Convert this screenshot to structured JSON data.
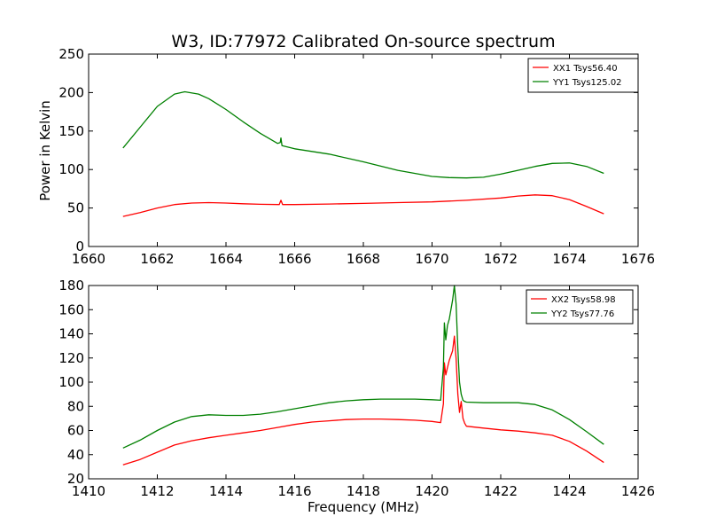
{
  "figure": {
    "title": "W3, ID:77972 Calibrated On-source spectrum",
    "ylabel": "Power in Kelvin",
    "xlabel": "Frequency (MHz)"
  },
  "chart_data": [
    {
      "type": "line",
      "xlim": [
        1660,
        1676
      ],
      "ylim": [
        0,
        250
      ],
      "xticks": [
        "1660",
        "1662",
        "1664",
        "1666",
        "1668",
        "1670",
        "1672",
        "1674",
        "1676"
      ],
      "yticks": [
        "0",
        "50",
        "100",
        "150",
        "200",
        "250"
      ],
      "legend_position": "top-right",
      "series": [
        {
          "name": "XX1 Tsys56.40",
          "color": "#ff0000",
          "points": [
            [
              1661.0,
              39
            ],
            [
              1661.5,
              44
            ],
            [
              1662.0,
              50
            ],
            [
              1662.5,
              54.5
            ],
            [
              1663.0,
              56.5
            ],
            [
              1663.5,
              57
            ],
            [
              1664.0,
              56.5
            ],
            [
              1664.5,
              55.5
            ],
            [
              1665.0,
              54.8
            ],
            [
              1665.55,
              54.5
            ],
            [
              1665.6,
              60
            ],
            [
              1665.65,
              54.5
            ],
            [
              1666.0,
              54.5
            ],
            [
              1667.0,
              55.2
            ],
            [
              1668.0,
              56
            ],
            [
              1669.0,
              57
            ],
            [
              1670.0,
              58
            ],
            [
              1671.0,
              60
            ],
            [
              1672.0,
              63
            ],
            [
              1672.5,
              65.5
            ],
            [
              1673.0,
              67
            ],
            [
              1673.5,
              66
            ],
            [
              1674.0,
              61
            ],
            [
              1674.5,
              52
            ],
            [
              1675.0,
              42.5
            ]
          ]
        },
        {
          "name": "YY1 Tsys125.02",
          "color": "#008000",
          "points": [
            [
              1661.0,
              128
            ],
            [
              1661.5,
              155
            ],
            [
              1662.0,
              182
            ],
            [
              1662.5,
              198
            ],
            [
              1662.8,
              201
            ],
            [
              1663.2,
              198
            ],
            [
              1663.5,
              192
            ],
            [
              1664.0,
              178
            ],
            [
              1664.5,
              162
            ],
            [
              1665.0,
              147
            ],
            [
              1665.5,
              134
            ],
            [
              1665.58,
              135
            ],
            [
              1665.6,
              141
            ],
            [
              1665.63,
              131
            ],
            [
              1666.0,
              127
            ],
            [
              1667.0,
              120
            ],
            [
              1668.0,
              110
            ],
            [
              1669.0,
              99
            ],
            [
              1670.0,
              91
            ],
            [
              1670.5,
              89.5
            ],
            [
              1671.0,
              89
            ],
            [
              1671.5,
              90
            ],
            [
              1672.0,
              94
            ],
            [
              1672.5,
              99
            ],
            [
              1673.0,
              104
            ],
            [
              1673.5,
              108
            ],
            [
              1674.0,
              108.5
            ],
            [
              1674.5,
              104
            ],
            [
              1675.0,
              95
            ]
          ]
        }
      ]
    },
    {
      "type": "line",
      "xlim": [
        1410,
        1426
      ],
      "ylim": [
        20,
        180
      ],
      "xticks": [
        "1410",
        "1412",
        "1414",
        "1416",
        "1418",
        "1420",
        "1422",
        "1424",
        "1426"
      ],
      "yticks": [
        "20",
        "40",
        "60",
        "80",
        "100",
        "120",
        "140",
        "160",
        "180"
      ],
      "legend_position": "top-right",
      "series": [
        {
          "name": "XX2 Tsys58.98",
          "color": "#ff0000",
          "points": [
            [
              1411.0,
              31.5
            ],
            [
              1411.5,
              36
            ],
            [
              1412.0,
              42
            ],
            [
              1412.5,
              48
            ],
            [
              1413.0,
              51.5
            ],
            [
              1413.5,
              54
            ],
            [
              1414.0,
              56
            ],
            [
              1414.5,
              58
            ],
            [
              1415.0,
              60
            ],
            [
              1415.5,
              62.5
            ],
            [
              1416.0,
              65
            ],
            [
              1416.5,
              67
            ],
            [
              1417.0,
              68
            ],
            [
              1417.5,
              69
            ],
            [
              1418.0,
              69.5
            ],
            [
              1418.5,
              69.5
            ],
            [
              1419.0,
              69
            ],
            [
              1419.5,
              68.5
            ],
            [
              1420.0,
              67.5
            ],
            [
              1420.25,
              66.5
            ],
            [
              1420.33,
              82
            ],
            [
              1420.36,
              116
            ],
            [
              1420.4,
              106
            ],
            [
              1420.45,
              112
            ],
            [
              1420.5,
              118
            ],
            [
              1420.55,
              122
            ],
            [
              1420.6,
              126
            ],
            [
              1420.65,
              138
            ],
            [
              1420.7,
              120
            ],
            [
              1420.75,
              90
            ],
            [
              1420.8,
              75
            ],
            [
              1420.85,
              84
            ],
            [
              1420.9,
              70
            ],
            [
              1420.95,
              66
            ],
            [
              1421.0,
              63.5
            ],
            [
              1421.5,
              62
            ],
            [
              1422.0,
              60.5
            ],
            [
              1422.5,
              59.5
            ],
            [
              1423.0,
              58
            ],
            [
              1423.5,
              56
            ],
            [
              1424.0,
              51
            ],
            [
              1424.5,
              43
            ],
            [
              1425.0,
              33.5
            ]
          ]
        },
        {
          "name": "YY2 Tsys77.76",
          "color": "#008000",
          "points": [
            [
              1411.0,
              45.5
            ],
            [
              1411.5,
              52
            ],
            [
              1412.0,
              60
            ],
            [
              1412.5,
              67
            ],
            [
              1413.0,
              71.5
            ],
            [
              1413.5,
              73
            ],
            [
              1414.0,
              72.5
            ],
            [
              1414.5,
              72.5
            ],
            [
              1415.0,
              73.5
            ],
            [
              1415.5,
              75.5
            ],
            [
              1416.0,
              78
            ],
            [
              1416.5,
              80.5
            ],
            [
              1417.0,
              83
            ],
            [
              1417.5,
              84.5
            ],
            [
              1418.0,
              85.5
            ],
            [
              1418.5,
              86
            ],
            [
              1419.0,
              86
            ],
            [
              1419.5,
              86
            ],
            [
              1420.0,
              85.5
            ],
            [
              1420.25,
              85
            ],
            [
              1420.33,
              112
            ],
            [
              1420.36,
              149
            ],
            [
              1420.4,
              135
            ],
            [
              1420.45,
              147
            ],
            [
              1420.5,
              152
            ],
            [
              1420.55,
              160
            ],
            [
              1420.6,
              168
            ],
            [
              1420.65,
              180
            ],
            [
              1420.7,
              165
            ],
            [
              1420.75,
              128
            ],
            [
              1420.8,
              100
            ],
            [
              1420.85,
              90
            ],
            [
              1420.9,
              85
            ],
            [
              1420.95,
              84
            ],
            [
              1421.0,
              83.5
            ],
            [
              1421.5,
              83
            ],
            [
              1422.0,
              83
            ],
            [
              1422.5,
              83
            ],
            [
              1423.0,
              81.5
            ],
            [
              1423.5,
              77
            ],
            [
              1424.0,
              69
            ],
            [
              1424.5,
              59
            ],
            [
              1425.0,
              48.5
            ]
          ]
        }
      ]
    }
  ]
}
